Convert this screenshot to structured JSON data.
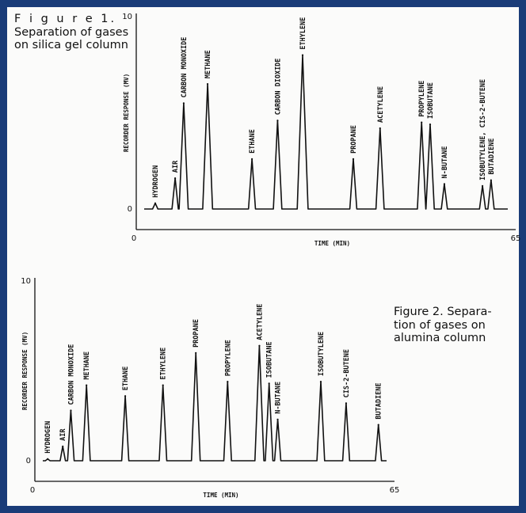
{
  "figure1": {
    "title_line1": "F i g u r e 1.",
    "title_rest": "Separation of gases on silica gel column"
  },
  "figure2": {
    "title": "Figure 2. Separa- tion of gases on alumina column"
  },
  "chart_data": [
    {
      "type": "line",
      "title": "Figure 1. Separation of gases on silica gel column",
      "xlabel": "TIME (MIN)",
      "ylabel": "RECORDER RESPONSE (MV)",
      "xlim": [
        0,
        65
      ],
      "ylim": [
        0,
        10
      ],
      "x_ticks": [
        "0",
        "65"
      ],
      "y_ticks": [
        "0",
        "10"
      ],
      "peaks": [
        {
          "label": "HYDROGEN",
          "time": 2.5,
          "height": 0.3
        },
        {
          "label": "AIR",
          "time": 6.0,
          "height": 1.6
        },
        {
          "label": "CARBON MONOXIDE",
          "time": 7.5,
          "height": 5.5
        },
        {
          "label": "METHANE",
          "time": 11.7,
          "height": 6.5
        },
        {
          "label": "ETHANE",
          "time": 19.5,
          "height": 2.6
        },
        {
          "label": "CARBON DIOXIDE",
          "time": 24.0,
          "height": 4.6
        },
        {
          "label": "ETHYLENE",
          "time": 28.4,
          "height": 8.0
        },
        {
          "label": "PROPANE",
          "time": 37.3,
          "height": 2.6
        },
        {
          "label": "ACETYLENE",
          "time": 42.0,
          "height": 4.2
        },
        {
          "label": "PROPYLENE",
          "time": 49.3,
          "height": 4.5
        },
        {
          "label": "ISOBUTANE",
          "time": 50.8,
          "height": 4.4
        },
        {
          "label": "N-BUTANE",
          "time": 53.3,
          "height": 1.3
        },
        {
          "label": "ISOBUTYLENE, CIS-2-BUTENE",
          "time": 60.0,
          "height": 1.2
        },
        {
          "label": "BUTADIENE",
          "time": 61.5,
          "height": 1.5
        }
      ]
    },
    {
      "type": "line",
      "title": "Figure 2. Separation of gases on alumina column",
      "xlabel": "TIME (MIN)",
      "ylabel": "RECORDER RESPONSE (MV)",
      "xlim": [
        0,
        65
      ],
      "ylim": [
        0,
        10
      ],
      "x_ticks": [
        "0",
        "65"
      ],
      "y_ticks": [
        "0",
        "10"
      ],
      "peaks": [
        {
          "label": "HYDROGEN",
          "time": 1.5,
          "height": 0.1
        },
        {
          "label": "AIR",
          "time": 4.3,
          "height": 0.8
        },
        {
          "label": "CARBON MONOXIDE",
          "time": 5.8,
          "height": 2.8
        },
        {
          "label": "METHANE",
          "time": 8.7,
          "height": 4.2
        },
        {
          "label": "ETHANE",
          "time": 15.9,
          "height": 3.6
        },
        {
          "label": "ETHYLENE",
          "time": 22.9,
          "height": 4.2
        },
        {
          "label": "PROPANE",
          "time": 29.0,
          "height": 6.0
        },
        {
          "label": "PROPYLENE",
          "time": 34.9,
          "height": 4.4
        },
        {
          "label": "ACETYLENE",
          "time": 40.8,
          "height": 6.4
        },
        {
          "label": "ISOBUTANE",
          "time": 42.6,
          "height": 4.3
        },
        {
          "label": "N-BUTANE",
          "time": 44.2,
          "height": 2.3
        },
        {
          "label": "ISOBUTYLENE",
          "time": 52.2,
          "height": 4.4
        },
        {
          "label": "CIS-2-BUTENE",
          "time": 56.9,
          "height": 3.2
        },
        {
          "label": "BUTADIENE",
          "time": 62.9,
          "height": 2.0
        }
      ]
    }
  ],
  "colors": {
    "frame": "#1a3c78",
    "ink": "#111111",
    "paper": "#fbfbfa"
  }
}
